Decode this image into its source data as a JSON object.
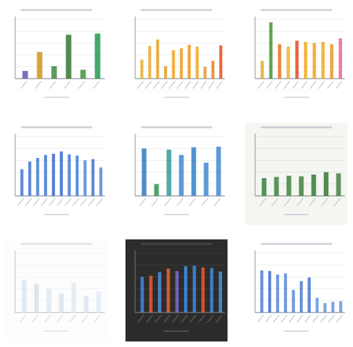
{
  "chart_data": [
    {
      "type": "bar",
      "style": "light",
      "ylim": [
        0,
        10
      ],
      "bars": [
        {
          "value": 1.3,
          "color": "#6a5fb0"
        },
        {
          "value": 4.5,
          "color": "#d39a2b"
        },
        {
          "value": 2.1,
          "color": "#4e8f4a"
        },
        {
          "value": 7.4,
          "color": "#3f7e3a"
        },
        {
          "value": 1.5,
          "color": "#4e9a46"
        },
        {
          "value": 7.6,
          "color": "#2e9e58"
        }
      ]
    },
    {
      "type": "bar",
      "style": "light",
      "ylim": [
        0,
        10
      ],
      "bars": [
        {
          "value": 3.2,
          "color": "#e8b43a"
        },
        {
          "value": 5.5,
          "color": "#e8b040"
        },
        {
          "value": 6.6,
          "color": "#e9a72c"
        },
        {
          "value": 2.1,
          "color": "#e3a330"
        },
        {
          "value": 4.8,
          "color": "#f0a52a"
        },
        {
          "value": 5.1,
          "color": "#efa22b"
        },
        {
          "value": 5.7,
          "color": "#ee9a22"
        },
        {
          "value": 5.4,
          "color": "#f2ad2e"
        },
        {
          "value": 2.0,
          "color": "#ee9a32"
        },
        {
          "value": 3.0,
          "color": "#e88a2a"
        },
        {
          "value": 5.6,
          "color": "#e85a2a"
        }
      ]
    },
    {
      "type": "bar",
      "style": "light",
      "ylim": [
        0,
        10
      ],
      "bars": [
        {
          "value": 3.0,
          "color": "#e6b23a"
        },
        {
          "value": 9.5,
          "color": "#4f9a3e"
        },
        {
          "value": 5.8,
          "color": "#e87a2a"
        },
        {
          "value": 5.4,
          "color": "#efb630"
        },
        {
          "value": 6.4,
          "color": "#e8532e"
        },
        {
          "value": 6.2,
          "color": "#f0b02c"
        },
        {
          "value": 6.0,
          "color": "#f0a82a"
        },
        {
          "value": 6.2,
          "color": "#f3ad2c"
        },
        {
          "value": 5.8,
          "color": "#ed9a2a"
        },
        {
          "value": 6.8,
          "color": "#ec6b8e"
        }
      ]
    },
    {
      "type": "bar",
      "style": "light",
      "ylim": [
        0,
        10
      ],
      "bars": [
        {
          "value": 4.5,
          "color": "#4a7dd4"
        },
        {
          "value": 5.8,
          "color": "#4b7ed5"
        },
        {
          "value": 6.4,
          "color": "#4e82d8"
        },
        {
          "value": 6.9,
          "color": "#4a7cd6"
        },
        {
          "value": 7.1,
          "color": "#3f6fd1"
        },
        {
          "value": 7.5,
          "color": "#3d73d6"
        },
        {
          "value": 7.0,
          "color": "#4a80d8"
        },
        {
          "value": 6.8,
          "color": "#4e86da"
        },
        {
          "value": 6.0,
          "color": "#5a8edd"
        },
        {
          "value": 6.2,
          "color": "#4a7dd4"
        },
        {
          "value": 4.8,
          "color": "#5a8edd"
        }
      ]
    },
    {
      "type": "bar",
      "style": "light",
      "ylim": [
        0,
        10
      ],
      "bars": [
        {
          "value": 8.0,
          "color": "#3f83c0"
        },
        {
          "value": 2.0,
          "color": "#3e9a55"
        },
        {
          "value": 7.8,
          "color": "#3e9ea0"
        },
        {
          "value": 6.9,
          "color": "#4a8fd0"
        },
        {
          "value": 8.2,
          "color": "#3e86c8"
        },
        {
          "value": 5.6,
          "color": "#4b90d2"
        },
        {
          "value": 8.3,
          "color": "#4c8fd1"
        }
      ]
    },
    {
      "type": "bar",
      "style": "photo-light",
      "ylim": [
        0,
        10
      ],
      "bars": [
        {
          "value": 3.0,
          "color": "#3f8a4a"
        },
        {
          "value": 3.2,
          "color": "#4a8a4a"
        },
        {
          "value": 3.4,
          "color": "#4b8c4b"
        },
        {
          "value": 3.3,
          "color": "#4a8a48"
        },
        {
          "value": 3.6,
          "color": "#3e8244"
        },
        {
          "value": 4.0,
          "color": "#3b7e40"
        },
        {
          "value": 3.8,
          "color": "#4d8a50"
        }
      ]
    },
    {
      "type": "bar",
      "style": "faint",
      "ylim": [
        0,
        10
      ],
      "bars": [
        {
          "value": 5.5,
          "color": "#dde6ef"
        },
        {
          "value": 4.8,
          "color": "#d9e2ea"
        },
        {
          "value": 4.0,
          "color": "#e1e8ef"
        },
        {
          "value": 3.2,
          "color": "#dbe5ee"
        },
        {
          "value": 5.0,
          "color": "#e2ecf6"
        },
        {
          "value": 2.8,
          "color": "#dfe7f1"
        },
        {
          "value": 3.6,
          "color": "#e4edf6"
        }
      ]
    },
    {
      "type": "bar",
      "style": "dark",
      "ylim": [
        0,
        10
      ],
      "bars": [
        {
          "value": 6.0,
          "color": "#3f84d6"
        },
        {
          "value": 6.2,
          "color": "#e2582e"
        },
        {
          "value": 6.8,
          "color": "#4f89d0"
        },
        {
          "value": 7.4,
          "color": "#e4602f"
        },
        {
          "value": 7.0,
          "color": "#7c66c5"
        },
        {
          "value": 7.8,
          "color": "#3f8ad9"
        },
        {
          "value": 7.9,
          "color": "#3d86d6"
        },
        {
          "value": 7.6,
          "color": "#e0592f"
        },
        {
          "value": 7.5,
          "color": "#3f86d6"
        },
        {
          "value": 6.9,
          "color": "#4a8fd8"
        }
      ]
    },
    {
      "type": "bar",
      "style": "light",
      "ylim": [
        0,
        10
      ],
      "bars": [
        {
          "value": 7.1,
          "color": "#5b84d8"
        },
        {
          "value": 7.0,
          "color": "#4a7ad4"
        },
        {
          "value": 6.4,
          "color": "#5d8fd8"
        },
        {
          "value": 6.6,
          "color": "#5f8fd9"
        },
        {
          "value": 3.8,
          "color": "#5c8fd8"
        },
        {
          "value": 5.3,
          "color": "#5a86d6"
        },
        {
          "value": 5.9,
          "color": "#4a7ad4"
        },
        {
          "value": 2.5,
          "color": "#6d9de0"
        },
        {
          "value": 1.6,
          "color": "#6d9de0"
        },
        {
          "value": 1.8,
          "color": "#6d9de0"
        },
        {
          "value": 1.9,
          "color": "#6d9de0"
        }
      ]
    }
  ]
}
